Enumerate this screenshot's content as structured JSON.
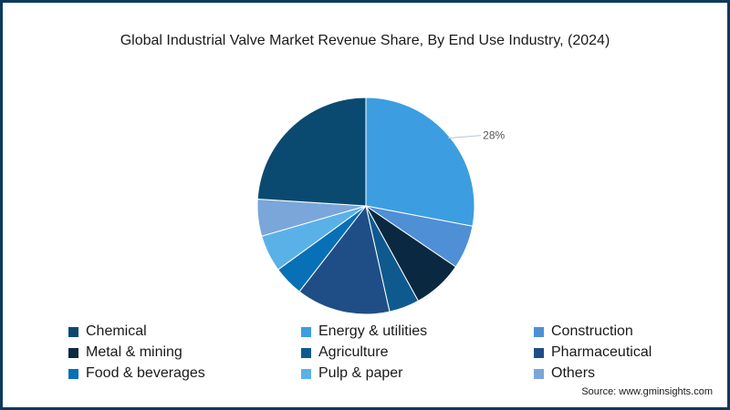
{
  "title": "Global Industrial Valve Market Revenue Share, By End Use Industry, (2024)",
  "source": "Source: www.gminsights.com",
  "chart_data": {
    "type": "pie",
    "title": "Global Industrial Valve Market Revenue Share, By End Use Industry, (2024)",
    "start_angle_deg": 0,
    "direction": "clockwise",
    "legend_position": "bottom",
    "series": [
      {
        "name": "Energy & utilities",
        "value": 28,
        "color": "#3c9ee0",
        "label": "28%"
      },
      {
        "name": "Construction",
        "value": 6.5,
        "color": "#4f8fd6"
      },
      {
        "name": "Metal & mining",
        "value": 7.5,
        "color": "#0a2940"
      },
      {
        "name": "Agriculture",
        "value": 4.5,
        "color": "#0e5a8f"
      },
      {
        "name": "Pharmaceutical",
        "value": 14,
        "color": "#1f4e87"
      },
      {
        "name": "Food & beverages",
        "value": 4.5,
        "color": "#0870b6"
      },
      {
        "name": "Pulp & paper",
        "value": 5.5,
        "color": "#5ab1e8"
      },
      {
        "name": "Others",
        "value": 5.5,
        "color": "#7aa6d9"
      },
      {
        "name": "Chemical",
        "value": 24,
        "color": "#0a4a70"
      }
    ],
    "legend_order": [
      "Chemical",
      "Energy & utilities",
      "Construction",
      "Metal & mining",
      "Agriculture",
      "Pharmaceutical",
      "Food & beverages",
      "Pulp & paper",
      "Others"
    ]
  }
}
